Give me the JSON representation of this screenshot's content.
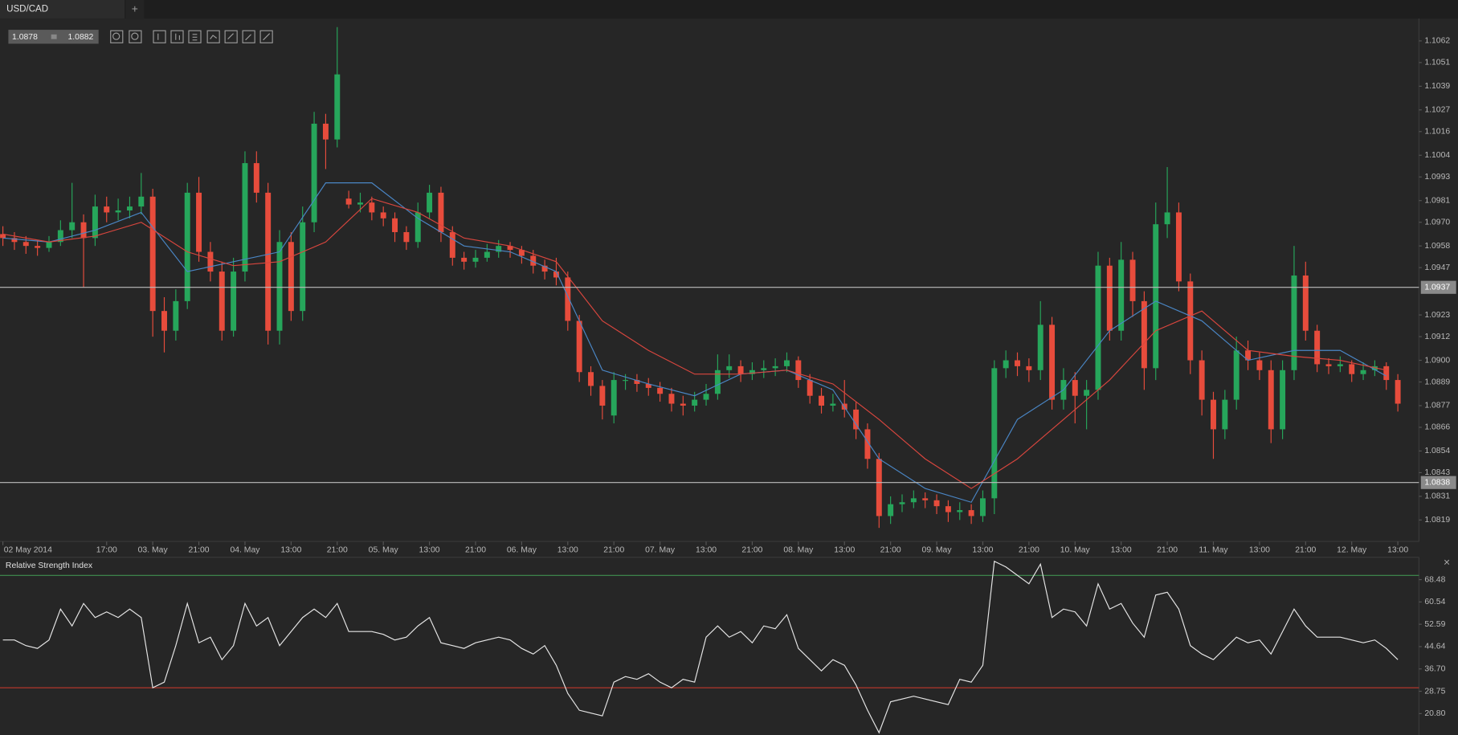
{
  "tab": "USD/CAD",
  "tab_add": "+",
  "close": "×",
  "toolbar": {
    "bid": "1.0878",
    "ask": "1.0882"
  },
  "chart_data": [
    {
      "type": "candlestick",
      "up_color": "#26a65b",
      "down_color": "#e74c3c",
      "xlim": [
        -0.25,
        122.75
      ],
      "ylim": [
        1.08081,
        1.10733
      ],
      "yticks": [
        1.1062,
        1.1051,
        1.1039,
        1.1027,
        1.1016,
        1.1004,
        1.0993,
        1.0981,
        {
          "value": 1.097,
          "label": "1.0970"
        },
        1.0958,
        1.0947,
        1.0923,
        1.0912,
        {
          "value": 1.09,
          "label": "1.0900"
        },
        1.0889,
        1.0877,
        1.0866,
        1.0854,
        1.0843,
        1.0831,
        1.0819
      ],
      "xticks": [
        {
          "value": 0,
          "label": "02 May 2014"
        },
        {
          "value": 9,
          "label": "17:00"
        },
        {
          "value": 13,
          "label": "03. May"
        },
        {
          "value": 17,
          "label": "21:00"
        },
        {
          "value": 21,
          "label": "04. May"
        },
        {
          "value": 25,
          "label": "13:00"
        },
        {
          "value": 29,
          "label": "21:00"
        },
        {
          "value": 33,
          "label": "05. May"
        },
        {
          "value": 37,
          "label": "13:00"
        },
        {
          "value": 41,
          "label": "21:00"
        },
        {
          "value": 45,
          "label": "06. May"
        },
        {
          "value": 49,
          "label": "13:00"
        },
        {
          "value": 53,
          "label": "21:00"
        },
        {
          "value": 57,
          "label": "07. May"
        },
        {
          "value": 61,
          "label": "13:00"
        },
        {
          "value": 65,
          "label": "21:00"
        },
        {
          "value": 69,
          "label": "08. May"
        },
        {
          "value": 73,
          "label": "13:00"
        },
        {
          "value": 77,
          "label": "21:00"
        },
        {
          "value": 81,
          "label": "09. May"
        },
        {
          "value": 85,
          "label": "13:00"
        },
        {
          "value": 89,
          "label": "21:00"
        },
        {
          "value": 93,
          "label": "10. May"
        },
        {
          "value": 97,
          "label": "13:00"
        },
        {
          "value": 101,
          "label": "21:00"
        },
        {
          "value": 105,
          "label": "11. May"
        },
        {
          "value": 109,
          "label": "13:00"
        },
        {
          "value": 113,
          "label": "21:00"
        },
        {
          "value": 117,
          "label": "12. May"
        },
        {
          "value": 121,
          "label": "13:00"
        }
      ],
      "price_lines": [
        1.0937,
        1.0838
      ],
      "price_line_color": "#bdbdbd",
      "ohlc": [
        [
          1.0964,
          1.0968,
          1.0958,
          1.0962
        ],
        [
          1.0962,
          1.0965,
          1.0956,
          1.096
        ],
        [
          1.096,
          1.0963,
          1.0954,
          1.0958
        ],
        [
          1.0958,
          1.0961,
          1.0953,
          1.0957
        ],
        [
          1.0957,
          1.0963,
          1.0955,
          1.096
        ],
        [
          1.096,
          1.0971,
          1.0958,
          1.0966
        ],
        [
          1.0966,
          1.099,
          1.0962,
          1.097
        ],
        [
          1.097,
          1.0974,
          1.0937,
          1.0962
        ],
        [
          1.0962,
          1.0984,
          1.0958,
          1.0978
        ],
        [
          1.0978,
          1.0983,
          1.097,
          1.0975
        ],
        [
          1.0975,
          1.0982,
          1.0971,
          1.0976
        ],
        [
          1.0976,
          1.0983,
          1.0972,
          1.0978
        ],
        [
          1.0978,
          1.0995,
          1.0974,
          1.0983
        ],
        [
          1.0983,
          1.0987,
          1.0912,
          1.0925
        ],
        [
          1.0925,
          1.0932,
          1.0904,
          1.0915
        ],
        [
          1.0915,
          1.0936,
          1.091,
          1.093
        ],
        [
          1.093,
          1.099,
          1.0926,
          1.0985
        ],
        [
          1.0985,
          1.0993,
          1.095,
          1.0955
        ],
        [
          1.0955,
          1.096,
          1.094,
          1.0945
        ],
        [
          1.0945,
          1.095,
          1.091,
          1.0915
        ],
        [
          1.0915,
          1.0952,
          1.0912,
          1.0945
        ],
        [
          1.0945,
          1.1006,
          1.094,
          1.1
        ],
        [
          1.1,
          1.1006,
          1.098,
          1.0985
        ],
        [
          1.0985,
          1.099,
          1.0908,
          1.0915
        ],
        [
          1.0915,
          1.0966,
          1.0908,
          1.096
        ],
        [
          1.096,
          1.0965,
          1.092,
          1.0925
        ],
        [
          1.0925,
          1.0978,
          1.092,
          1.097
        ],
        [
          1.097,
          1.1026,
          1.0965,
          1.102
        ],
        [
          1.102,
          1.1025,
          1.0997,
          1.1012
        ],
        [
          1.1012,
          1.1069,
          1.1008,
          1.1045
        ],
        [
          1.0982,
          1.0986,
          1.0977,
          1.0979
        ],
        [
          1.0979,
          1.0985,
          1.0975,
          1.098
        ],
        [
          1.098,
          1.0983,
          1.0971,
          1.0975
        ],
        [
          1.0975,
          1.0978,
          1.0968,
          1.0972
        ],
        [
          1.0972,
          1.0975,
          1.096,
          1.0965
        ],
        [
          1.0965,
          1.0968,
          1.0956,
          1.096
        ],
        [
          1.096,
          1.098,
          1.0957,
          1.0975
        ],
        [
          1.0975,
          1.0989,
          1.0972,
          1.0985
        ],
        [
          1.0985,
          1.0988,
          1.096,
          1.0965
        ],
        [
          1.0965,
          1.0968,
          1.0948,
          1.0952
        ],
        [
          1.0952,
          1.0955,
          1.0946,
          1.095
        ],
        [
          1.095,
          1.0956,
          1.0947,
          1.0952
        ],
        [
          1.0952,
          1.0959,
          1.095,
          1.0955
        ],
        [
          1.0955,
          1.0961,
          1.0952,
          1.0958
        ],
        [
          1.0958,
          1.096,
          1.0952,
          1.0956
        ],
        [
          1.0956,
          1.0958,
          1.0949,
          1.0953
        ],
        [
          1.0953,
          1.0956,
          1.0944,
          1.0948
        ],
        [
          1.0948,
          1.0951,
          1.0941,
          1.0945
        ],
        [
          1.0945,
          1.0952,
          1.0938,
          1.0942
        ],
        [
          1.0942,
          1.0945,
          1.0915,
          1.092
        ],
        [
          1.092,
          1.0923,
          1.0889,
          1.0894
        ],
        [
          1.0894,
          1.0897,
          1.0882,
          1.0887
        ],
        [
          1.0887,
          1.089,
          1.087,
          1.0877
        ],
        [
          1.0872,
          1.0894,
          1.0868,
          1.089
        ],
        [
          1.089,
          1.0893,
          1.0885,
          1.089
        ],
        [
          1.089,
          1.0893,
          1.0884,
          1.0888
        ],
        [
          1.0888,
          1.0891,
          1.0882,
          1.0886
        ],
        [
          1.0886,
          1.0889,
          1.0879,
          1.0883
        ],
        [
          1.0883,
          1.0886,
          1.0874,
          1.0878
        ],
        [
          1.0878,
          1.0882,
          1.0872,
          1.0877
        ],
        [
          1.0877,
          1.0884,
          1.0874,
          1.088
        ],
        [
          1.088,
          1.0888,
          1.0877,
          1.0883
        ],
        [
          1.0883,
          1.0903,
          1.088,
          1.0895
        ],
        [
          1.0895,
          1.0903,
          1.0891,
          1.0897
        ],
        [
          1.0897,
          1.09,
          1.0889,
          1.0893
        ],
        [
          1.0893,
          1.0899,
          1.089,
          1.0895
        ],
        [
          1.0895,
          1.09,
          1.0891,
          1.0896
        ],
        [
          1.0896,
          1.0901,
          1.0892,
          1.0897
        ],
        [
          1.0897,
          1.0904,
          1.0894,
          1.09
        ],
        [
          1.09,
          1.0902,
          1.0886,
          1.089
        ],
        [
          1.089,
          1.0893,
          1.0878,
          1.0882
        ],
        [
          1.0882,
          1.0886,
          1.0873,
          1.0877
        ],
        [
          1.0877,
          1.0883,
          1.0874,
          1.0878
        ],
        [
          1.0878,
          1.089,
          1.0871,
          1.0875
        ],
        [
          1.0875,
          1.0879,
          1.086,
          1.0865
        ],
        [
          1.0865,
          1.0868,
          1.0845,
          1.085
        ],
        [
          1.085,
          1.0853,
          1.0815,
          1.0821
        ],
        [
          1.0821,
          1.0831,
          1.0817,
          1.0827
        ],
        [
          1.0827,
          1.0832,
          1.0823,
          1.0828
        ],
        [
          1.0828,
          1.0834,
          1.0825,
          1.083
        ],
        [
          1.083,
          1.0833,
          1.0825,
          1.0829
        ],
        [
          1.0829,
          1.0832,
          1.0822,
          1.0826
        ],
        [
          1.0826,
          1.0829,
          1.0818,
          1.0823
        ],
        [
          1.0823,
          1.0828,
          1.0819,
          1.0824
        ],
        [
          1.0824,
          1.0827,
          1.0817,
          1.0821
        ],
        [
          1.0821,
          1.0834,
          1.0818,
          1.083
        ],
        [
          1.083,
          1.09,
          1.0822,
          1.0896
        ],
        [
          1.0896,
          1.0905,
          1.0891,
          1.09
        ],
        [
          1.09,
          1.0904,
          1.0892,
          1.0897
        ],
        [
          1.0897,
          1.0901,
          1.0889,
          1.0895
        ],
        [
          1.0895,
          1.093,
          1.089,
          1.0918
        ],
        [
          1.0918,
          1.0922,
          1.0875,
          1.088
        ],
        [
          1.088,
          1.0896,
          1.0875,
          1.089
        ],
        [
          1.089,
          1.0894,
          1.0868,
          1.0882
        ],
        [
          1.0882,
          1.089,
          1.0865,
          1.0885
        ],
        [
          1.0885,
          1.0955,
          1.088,
          1.0948
        ],
        [
          1.0948,
          1.0952,
          1.091,
          1.0915
        ],
        [
          1.0915,
          1.096,
          1.091,
          1.0951
        ],
        [
          1.0951,
          1.0955,
          1.0922,
          1.093
        ],
        [
          1.093,
          1.0935,
          1.0885,
          1.0896
        ],
        [
          1.0896,
          1.098,
          1.089,
          1.0969
        ],
        [
          1.0969,
          1.0998,
          1.0962,
          1.0975
        ],
        [
          1.0975,
          1.098,
          1.0935,
          1.094
        ],
        [
          1.094,
          1.0944,
          1.0893,
          1.09
        ],
        [
          1.09,
          1.0905,
          1.0872,
          1.088
        ],
        [
          1.088,
          1.0884,
          1.085,
          1.0865
        ],
        [
          1.0865,
          1.0885,
          1.086,
          1.088
        ],
        [
          1.088,
          1.0912,
          1.0875,
          1.0905
        ],
        [
          1.0905,
          1.091,
          1.0895,
          1.09
        ],
        [
          1.09,
          1.0904,
          1.089,
          1.0895
        ],
        [
          1.0895,
          1.09,
          1.0858,
          1.0865
        ],
        [
          1.0865,
          1.09,
          1.086,
          1.0895
        ],
        [
          1.0895,
          1.0958,
          1.089,
          1.0943
        ],
        [
          1.0943,
          1.095,
          1.091,
          1.0915
        ],
        [
          1.0915,
          1.0918,
          1.0894,
          1.0898
        ],
        [
          1.0898,
          1.0901,
          1.0893,
          1.0897
        ],
        [
          1.0897,
          1.0902,
          1.0894,
          1.0898
        ],
        [
          1.0898,
          1.09,
          1.0889,
          1.0893
        ],
        [
          1.0893,
          1.0899,
          1.089,
          1.0895
        ],
        [
          1.0895,
          1.09,
          1.0892,
          1.0897
        ],
        [
          1.0897,
          1.0899,
          1.0885,
          1.089
        ],
        [
          1.089,
          1.0893,
          1.0874,
          1.0878
        ]
      ],
      "moving_averages": [
        {
          "color": "#4a86c5",
          "x": [
            0,
            4,
            8,
            12,
            16,
            20,
            24,
            28,
            32,
            36,
            40,
            44,
            48,
            52,
            56,
            60,
            64,
            68,
            72,
            76,
            80,
            84,
            88,
            92,
            96,
            100,
            104,
            108,
            112,
            116,
            120
          ],
          "values": [
            1.0962,
            1.096,
            1.0966,
            1.0975,
            1.0945,
            1.095,
            1.0955,
            1.099,
            1.099,
            1.0972,
            1.0958,
            1.0955,
            1.0945,
            1.0895,
            1.0888,
            1.0882,
            1.0893,
            1.0895,
            1.0885,
            1.085,
            1.0835,
            1.0828,
            1.087,
            1.0885,
            1.0915,
            1.093,
            1.092,
            1.09,
            1.0905,
            1.0905,
            1.0892
          ]
        },
        {
          "color": "#d9463e",
          "x": [
            0,
            4,
            8,
            12,
            16,
            20,
            24,
            28,
            32,
            36,
            40,
            44,
            48,
            52,
            56,
            60,
            64,
            68,
            72,
            76,
            80,
            84,
            88,
            92,
            96,
            100,
            104,
            108,
            112,
            116,
            120
          ],
          "values": [
            1.0964,
            1.096,
            1.0963,
            1.097,
            1.0955,
            1.0948,
            1.095,
            1.096,
            1.0982,
            1.0975,
            1.0962,
            1.0958,
            1.095,
            1.092,
            1.0905,
            1.0893,
            1.0893,
            1.0895,
            1.0888,
            1.087,
            1.085,
            1.0835,
            1.085,
            1.087,
            1.089,
            1.0915,
            1.0925,
            1.0905,
            1.0902,
            1.09,
            1.0895
          ]
        }
      ]
    },
    {
      "type": "line",
      "title": "Relative Strength Index",
      "color": "#e6e6e6",
      "xlim": [
        -0.25,
        122.75
      ],
      "ylim": [
        13.18,
        76.1
      ],
      "yticks": [
        68.48,
        60.54,
        52.59,
        44.64,
        {
          "value": 36.7,
          "label": "36.70"
        },
        28.75,
        {
          "value": 20.8,
          "label": "20.80"
        }
      ],
      "levels": [
        {
          "value": 70,
          "color": "#3f8f4f"
        },
        {
          "value": 30,
          "color": "#c0392b"
        }
      ],
      "values": [
        47,
        47,
        45,
        44,
        47,
        58,
        52,
        60,
        55,
        57,
        55,
        58,
        55,
        30,
        32,
        45,
        60,
        46,
        48,
        40,
        45,
        60,
        52,
        55,
        45,
        50,
        55,
        58,
        55,
        60,
        50,
        50,
        50,
        49,
        47,
        48,
        52,
        55,
        46,
        45,
        44,
        46,
        47,
        48,
        47,
        44,
        42,
        45,
        38,
        28,
        22,
        21,
        20,
        32,
        34,
        33,
        35,
        32,
        30,
        33,
        32,
        48,
        52,
        48,
        50,
        46,
        52,
        51,
        56,
        44,
        40,
        36,
        40,
        38,
        31,
        22,
        14,
        25,
        26,
        27,
        26,
        25,
        24,
        33,
        32,
        38,
        75,
        73,
        70,
        67,
        74,
        55,
        58,
        57,
        52,
        67,
        58,
        60,
        53,
        48,
        63,
        64,
        58,
        45,
        42,
        40,
        44,
        48,
        46,
        47,
        42,
        50,
        58,
        52,
        48,
        48,
        48,
        47,
        46,
        47,
        44,
        40
      ]
    }
  ]
}
